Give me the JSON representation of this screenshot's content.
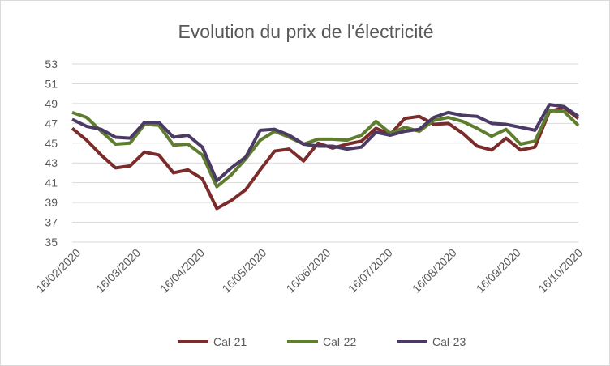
{
  "chart_data": {
    "type": "line",
    "title": "Evolution du prix de l'électricité",
    "xlabel": "",
    "ylabel": "",
    "ylim": [
      35,
      53
    ],
    "yticks": [
      35,
      37,
      39,
      41,
      43,
      45,
      47,
      49,
      51,
      53
    ],
    "xlim": [
      "2020-02-14",
      "2020-10-16"
    ],
    "xticks": [
      "2020-02-16",
      "2020-03-16",
      "2020-04-16",
      "2020-05-16",
      "2020-06-16",
      "2020-07-16",
      "2020-08-16",
      "2020-09-16",
      "2020-10-16"
    ],
    "xtick_labels": [
      "16/02/2020",
      "16/03/2020",
      "16/04/2020",
      "16/05/2020",
      "16/06/2020",
      "16/07/2020",
      "16/08/2020",
      "16/09/2020",
      "16/10/2020"
    ],
    "grid": true,
    "legend": "bottom",
    "x": [
      "2020-02-14",
      "2020-02-21",
      "2020-02-28",
      "2020-03-06",
      "2020-03-13",
      "2020-03-20",
      "2020-03-27",
      "2020-04-03",
      "2020-04-10",
      "2020-04-17",
      "2020-04-24",
      "2020-05-01",
      "2020-05-08",
      "2020-05-15",
      "2020-05-22",
      "2020-05-29",
      "2020-06-05",
      "2020-06-12",
      "2020-06-19",
      "2020-06-26",
      "2020-07-03",
      "2020-07-10",
      "2020-07-17",
      "2020-07-24",
      "2020-07-31",
      "2020-08-07",
      "2020-08-14",
      "2020-08-21",
      "2020-08-28",
      "2020-09-04",
      "2020-09-11",
      "2020-09-18",
      "2020-09-25",
      "2020-10-02",
      "2020-10-09",
      "2020-10-16"
    ],
    "series": [
      {
        "name": "Cal-21",
        "color": "#7b2c2a",
        "values": [
          46.5,
          45.3,
          43.8,
          42.5,
          42.7,
          44.1,
          43.8,
          42.0,
          42.3,
          41.4,
          38.4,
          39.2,
          40.3,
          42.3,
          44.2,
          44.4,
          43.2,
          45.0,
          44.5,
          44.9,
          45.2,
          46.5,
          45.9,
          47.5,
          47.7,
          46.9,
          47.0,
          46.0,
          44.7,
          44.3,
          45.5,
          44.3,
          44.6,
          48.2,
          48.6,
          47.5
        ]
      },
      {
        "name": "Cal-22",
        "color": "#5e7d2e",
        "values": [
          48.1,
          47.6,
          46.2,
          44.9,
          45.0,
          46.9,
          46.8,
          44.8,
          44.9,
          43.8,
          40.6,
          41.8,
          43.4,
          45.3,
          46.2,
          45.6,
          44.9,
          45.4,
          45.4,
          45.3,
          45.8,
          47.2,
          46.0,
          46.6,
          46.2,
          47.3,
          47.6,
          47.2,
          46.5,
          45.7,
          46.4,
          44.9,
          45.2,
          48.3,
          48.2,
          46.8
        ]
      },
      {
        "name": "Cal-23",
        "color": "#4b3a63",
        "values": [
          47.4,
          46.7,
          46.4,
          45.6,
          45.5,
          47.1,
          47.1,
          45.6,
          45.8,
          44.6,
          41.2,
          42.5,
          43.6,
          46.3,
          46.4,
          45.8,
          44.9,
          44.7,
          44.7,
          44.4,
          44.6,
          46.1,
          45.8,
          46.2,
          46.4,
          47.6,
          48.1,
          47.8,
          47.7,
          47.0,
          46.9,
          46.6,
          46.3,
          48.9,
          48.7,
          47.7
        ]
      }
    ]
  }
}
